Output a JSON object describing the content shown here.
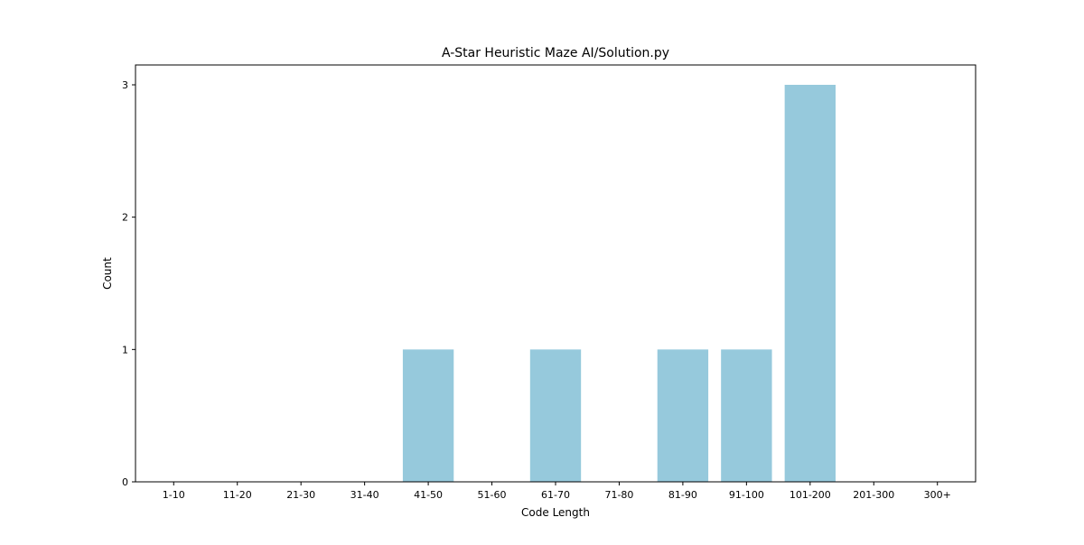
{
  "chart_data": {
    "type": "bar",
    "title": "A-Star Heuristic Maze AI/Solution.py",
    "xlabel": "Code Length",
    "ylabel": "Count",
    "categories": [
      "1-10",
      "11-20",
      "21-30",
      "31-40",
      "41-50",
      "51-60",
      "61-70",
      "71-80",
      "81-90",
      "91-100",
      "101-200",
      "201-300",
      "300+"
    ],
    "values": [
      0,
      0,
      0,
      0,
      1,
      0,
      1,
      0,
      1,
      1,
      3,
      0,
      0
    ],
    "ylim": [
      0,
      3.15
    ],
    "yticks": [
      0,
      1,
      2,
      3
    ],
    "bar_color": "#96c9dc",
    "grid": false,
    "legend": "none"
  }
}
